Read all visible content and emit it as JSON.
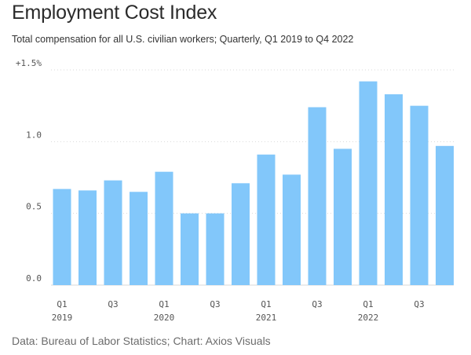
{
  "title": "Employment Cost Index",
  "subtitle": "Total compensation for all U.S. civilian workers; Quarterly, Q1 2019 to Q4 2022",
  "source": "Data: Bureau of Labor Statistics; Chart: Axios Visuals",
  "colors": {
    "bar": "#82c7fa"
  },
  "chart_data": {
    "type": "bar",
    "title": "Employment Cost Index",
    "subtitle": "Total compensation for all U.S. civilian workers; Quarterly, Q1 2019 to Q4 2022",
    "categories": [
      "Q1 2019",
      "Q2 2019",
      "Q3 2019",
      "Q4 2019",
      "Q1 2020",
      "Q2 2020",
      "Q3 2020",
      "Q4 2020",
      "Q1 2021",
      "Q2 2021",
      "Q3 2021",
      "Q4 2021",
      "Q1 2022",
      "Q2 2022",
      "Q3 2022",
      "Q4 2022"
    ],
    "values": [
      0.67,
      0.66,
      0.73,
      0.65,
      0.79,
      0.5,
      0.5,
      0.71,
      0.91,
      0.77,
      1.24,
      0.95,
      1.42,
      1.33,
      1.25,
      0.97
    ],
    "ylim": [
      0,
      1.5
    ],
    "y_ticks": [
      {
        "value": 0,
        "label": "0.0"
      },
      {
        "value": 0.5,
        "label": "0.5"
      },
      {
        "value": 1.0,
        "label": "1.0"
      },
      {
        "value": 1.5,
        "label": "+1.5%"
      }
    ],
    "x_ticks": [
      {
        "index": 0,
        "quarter": "Q1",
        "year": "2019"
      },
      {
        "index": 2,
        "quarter": "Q3",
        "year": ""
      },
      {
        "index": 4,
        "quarter": "Q1",
        "year": "2020"
      },
      {
        "index": 6,
        "quarter": "Q3",
        "year": ""
      },
      {
        "index": 8,
        "quarter": "Q1",
        "year": "2021"
      },
      {
        "index": 10,
        "quarter": "Q3",
        "year": ""
      },
      {
        "index": 12,
        "quarter": "Q1",
        "year": "2022"
      },
      {
        "index": 14,
        "quarter": "Q3",
        "year": ""
      }
    ],
    "grid": true,
    "legend": "none"
  }
}
